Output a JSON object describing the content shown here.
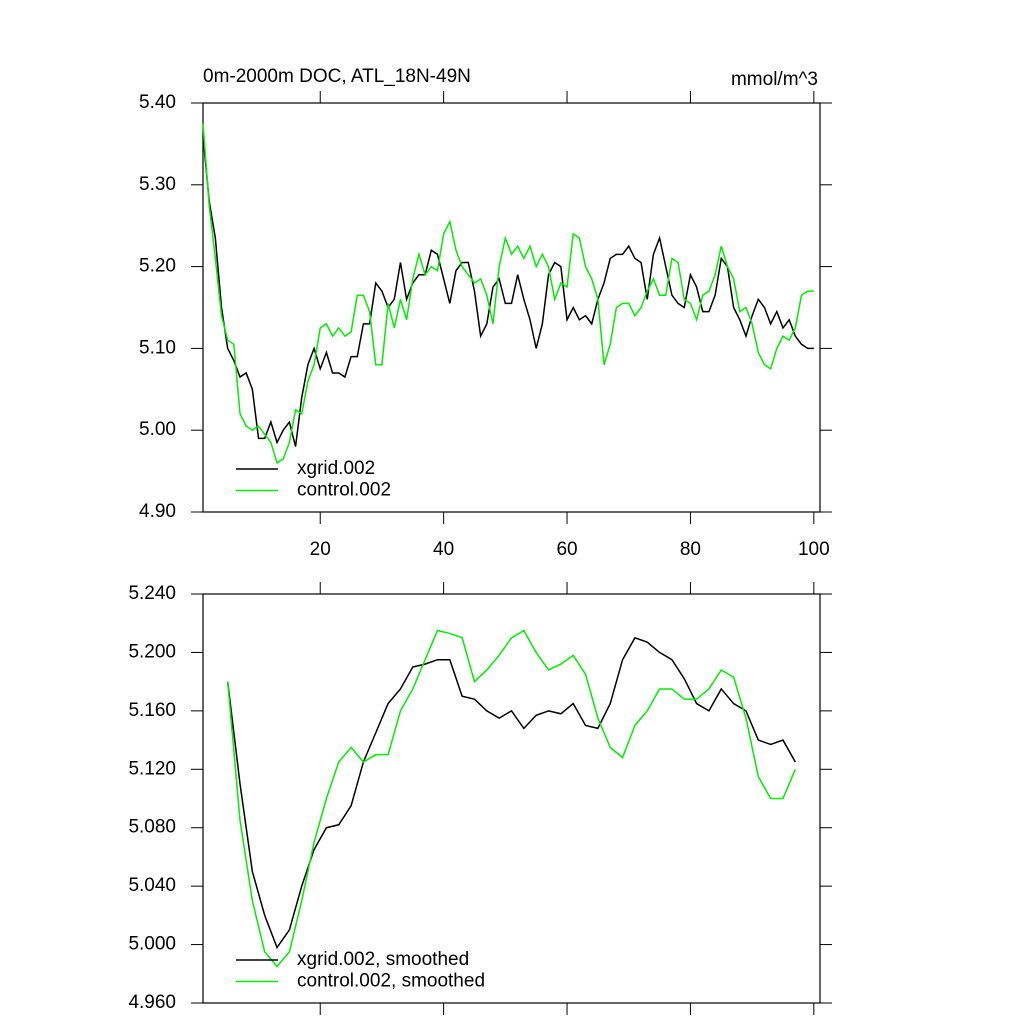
{
  "chart_data": [
    {
      "type": "line",
      "title": "0m-2000m DOC, ATL_18N-49N",
      "units": "mmol/m^3",
      "x": [
        1,
        2,
        3,
        4,
        5,
        6,
        7,
        8,
        9,
        10,
        11,
        12,
        13,
        14,
        15,
        16,
        17,
        18,
        19,
        20,
        21,
        22,
        23,
        24,
        25,
        26,
        27,
        28,
        29,
        30,
        31,
        32,
        33,
        34,
        35,
        36,
        37,
        38,
        39,
        40,
        41,
        42,
        43,
        44,
        45,
        46,
        47,
        48,
        49,
        50,
        51,
        52,
        53,
        54,
        55,
        56,
        57,
        58,
        59,
        60,
        61,
        62,
        63,
        64,
        65,
        66,
        67,
        68,
        69,
        70,
        71,
        72,
        73,
        74,
        75,
        76,
        77,
        78,
        79,
        80,
        81,
        82,
        83,
        84,
        85,
        86,
        87,
        88,
        89,
        90,
        91,
        92,
        93,
        94,
        95,
        96,
        97,
        98,
        99,
        100
      ],
      "series": [
        {
          "name": "xgrid.002",
          "color": "#000000",
          "values": [
            5.36,
            5.28,
            5.235,
            5.15,
            5.1,
            5.085,
            5.065,
            5.07,
            5.05,
            4.99,
            4.99,
            5.01,
            4.985,
            5.0,
            5.01,
            4.98,
            5.04,
            5.08,
            5.1,
            5.075,
            5.095,
            5.07,
            5.07,
            5.065,
            5.09,
            5.09,
            5.13,
            5.13,
            5.18,
            5.17,
            5.15,
            5.16,
            5.205,
            5.16,
            5.18,
            5.19,
            5.19,
            5.22,
            5.215,
            5.185,
            5.155,
            5.195,
            5.205,
            5.205,
            5.17,
            5.115,
            5.13,
            5.175,
            5.185,
            5.155,
            5.155,
            5.19,
            5.16,
            5.135,
            5.1,
            5.13,
            5.19,
            5.205,
            5.2,
            5.135,
            5.15,
            5.135,
            5.14,
            5.13,
            5.16,
            5.18,
            5.21,
            5.215,
            5.215,
            5.225,
            5.21,
            5.205,
            5.16,
            5.215,
            5.235,
            5.2,
            5.165,
            5.155,
            5.15,
            5.19,
            5.175,
            5.145,
            5.145,
            5.165,
            5.21,
            5.2,
            5.15,
            5.135,
            5.115,
            5.14,
            5.16,
            5.15,
            5.13,
            5.145,
            5.125,
            5.135,
            5.115,
            5.105,
            5.1,
            5.1
          ]
        },
        {
          "name": "control.002",
          "color": "#00ee00",
          "values": [
            5.375,
            5.275,
            5.21,
            5.14,
            5.11,
            5.105,
            5.02,
            5.005,
            5.0,
            5.005,
            4.995,
            4.985,
            4.96,
            4.965,
            4.985,
            5.025,
            5.02,
            5.06,
            5.08,
            5.125,
            5.13,
            5.115,
            5.125,
            5.115,
            5.12,
            5.165,
            5.165,
            5.145,
            5.08,
            5.08,
            5.155,
            5.125,
            5.16,
            5.135,
            5.185,
            5.215,
            5.19,
            5.2,
            5.195,
            5.24,
            5.255,
            5.22,
            5.2,
            5.19,
            5.18,
            5.185,
            5.165,
            5.13,
            5.2,
            5.235,
            5.215,
            5.225,
            5.21,
            5.225,
            5.2,
            5.215,
            5.2,
            5.16,
            5.18,
            5.175,
            5.24,
            5.235,
            5.2,
            5.185,
            5.16,
            5.08,
            5.105,
            5.15,
            5.155,
            5.155,
            5.14,
            5.15,
            5.17,
            5.185,
            5.165,
            5.165,
            5.21,
            5.205,
            5.16,
            5.155,
            5.135,
            5.165,
            5.17,
            5.19,
            5.225,
            5.2,
            5.185,
            5.145,
            5.15,
            5.13,
            5.095,
            5.08,
            5.075,
            5.1,
            5.115,
            5.11,
            5.125,
            5.165,
            5.17,
            5.17
          ]
        }
      ],
      "xlim": [
        1,
        101
      ],
      "xticks": [
        20,
        40,
        60,
        80,
        100
      ],
      "xtick_labels": true,
      "ylim": [
        4.9,
        5.4
      ],
      "yticks": [
        {
          "value": 4.9,
          "label": "4.90"
        },
        {
          "value": 5.0,
          "label": "5.00"
        },
        {
          "value": 5.1,
          "label": "5.10"
        },
        {
          "value": 5.2,
          "label": "5.20"
        },
        {
          "value": 5.3,
          "label": "5.30"
        },
        {
          "value": 5.4,
          "label": "5.40"
        }
      ],
      "legend": "lower left"
    },
    {
      "type": "line",
      "x": [
        5,
        7,
        9,
        11,
        13,
        15,
        17,
        19,
        21,
        23,
        25,
        27,
        29,
        31,
        33,
        35,
        37,
        39,
        41,
        43,
        45,
        47,
        49,
        51,
        53,
        55,
        57,
        59,
        61,
        63,
        65,
        67,
        69,
        71,
        73,
        75,
        77,
        79,
        81,
        83,
        85,
        87,
        89,
        91,
        93,
        95,
        97
      ],
      "series": [
        {
          "name": "xgrid.002, smoothed",
          "color": "#000000",
          "values": [
            5.18,
            5.11,
            5.05,
            5.02,
            4.998,
            5.01,
            5.04,
            5.065,
            5.08,
            5.082,
            5.095,
            5.125,
            5.145,
            5.165,
            5.175,
            5.19,
            5.192,
            5.195,
            5.195,
            5.17,
            5.168,
            5.16,
            5.155,
            5.16,
            5.148,
            5.157,
            5.16,
            5.158,
            5.165,
            5.15,
            5.148,
            5.165,
            5.195,
            5.21,
            5.207,
            5.2,
            5.195,
            5.182,
            5.165,
            5.16,
            5.175,
            5.165,
            5.16,
            5.14,
            5.137,
            5.14,
            5.125
          ]
        },
        {
          "name": "control.002, smoothed",
          "color": "#00ee00",
          "values": [
            5.18,
            5.085,
            5.03,
            4.995,
            4.985,
            4.995,
            5.03,
            5.07,
            5.1,
            5.125,
            5.135,
            5.125,
            5.13,
            5.13,
            5.16,
            5.175,
            5.195,
            5.215,
            5.213,
            5.21,
            5.18,
            5.188,
            5.198,
            5.21,
            5.215,
            5.2,
            5.188,
            5.192,
            5.198,
            5.185,
            5.155,
            5.135,
            5.128,
            5.15,
            5.16,
            5.175,
            5.175,
            5.168,
            5.168,
            5.175,
            5.188,
            5.183,
            5.155,
            5.115,
            5.1,
            5.1,
            5.12
          ]
        }
      ],
      "xlim": [
        1,
        101
      ],
      "xticks": [
        20,
        40,
        60,
        80,
        100
      ],
      "xtick_labels": false,
      "ylim": [
        4.96,
        5.24
      ],
      "yticks": [
        {
          "value": 4.96,
          "label": "4.960"
        },
        {
          "value": 5.0,
          "label": "5.000"
        },
        {
          "value": 5.04,
          "label": "5.040"
        },
        {
          "value": 5.08,
          "label": "5.080"
        },
        {
          "value": 5.12,
          "label": "5.120"
        },
        {
          "value": 5.16,
          "label": "5.160"
        },
        {
          "value": 5.2,
          "label": "5.200"
        },
        {
          "value": 5.24,
          "label": "5.240"
        }
      ],
      "legend": "lower left"
    }
  ]
}
